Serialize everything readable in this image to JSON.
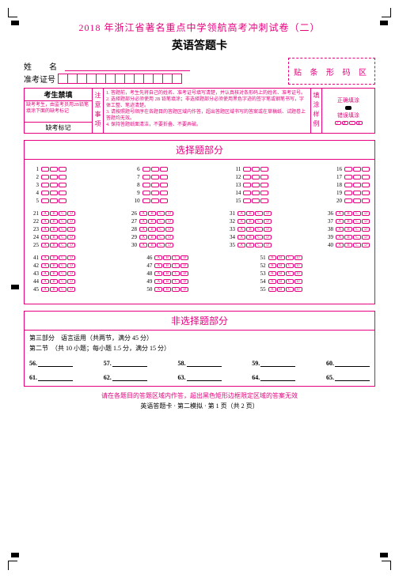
{
  "title_main": "2018 年浙江省著名重点中学领航高考冲刺试卷（二）",
  "title_sub": "英语答题卡",
  "name_label": "姓　名",
  "examno_label": "准考证号",
  "examno_box_count": 13,
  "barcode_label": "贴 条 形 码 区",
  "info": {
    "col1_hd": "考生禁填",
    "col1_txt": "缺考考生，由监考员用2B铅笔填涂下面的缺考标记",
    "col1_mark_hd": "缺考标记",
    "col2": "注意事项",
    "col3_lines": [
      "1. 答题前，考生先将自己的姓名、准考证号填写清楚，并认真核对条形码上的姓名、准考证号。",
      "2. 选择题部分必须使用 2B 铅笔填涂；非选择题部分必须使用黑色字迹的签字笔或钢笔书写，字体工整、笔迹清楚。",
      "3. 请按照题号顺序在各题目的答题区域内作答，超出答题区域书写的答案或在草稿纸、试题卷上答题均无效。",
      "4. 保持答题纸面清洁，不要折叠、不要弄破。"
    ],
    "col4": "填涂样例",
    "col5_correct": "正确填涂",
    "col5_wrong": "错误填涂"
  },
  "mc_header": "选择题部分",
  "mc_groups": [
    {
      "start": 1,
      "end": 5,
      "opts": 3,
      "letters": false
    },
    {
      "start": 6,
      "end": 10,
      "opts": 3,
      "letters": false
    },
    {
      "start": 11,
      "end": 15,
      "opts": 3,
      "letters": false
    },
    {
      "start": 16,
      "end": 20,
      "opts": 3,
      "letters": false
    },
    {
      "start": 21,
      "end": 25,
      "opts": 4,
      "letters": true
    },
    {
      "start": 26,
      "end": 30,
      "opts": 4,
      "letters": true
    },
    {
      "start": 31,
      "end": 35,
      "opts": 4,
      "letters": true
    },
    {
      "start": 36,
      "end": 40,
      "opts": 4,
      "letters": true
    },
    {
      "start": 41,
      "end": 45,
      "opts": 4,
      "letters": true
    },
    {
      "start": 46,
      "end": 50,
      "opts": 4,
      "letters": true
    },
    {
      "start": 51,
      "end": 55,
      "opts": 4,
      "letters": true
    }
  ],
  "free_header": "非选择题部分",
  "free_lines": [
    "第三部分　语言运用（共两节，满分 45 分）",
    "第二节　（共 10 小题；每小题 1.5 分，满分 15 分）"
  ],
  "blank_rows": [
    [
      "56.",
      "57.",
      "58.",
      "59.",
      "60."
    ],
    [
      "61.",
      "62.",
      "63.",
      "64.",
      "65."
    ]
  ],
  "footer_note": "请在各题目的答题区域内作答，超出黑色矩形边框限定区域的答案无效",
  "footer_page": "英语答题卡 · 第二模拟 · 第 1 页（共 2 页）",
  "letters4": [
    "A",
    "B",
    "C",
    "D"
  ]
}
